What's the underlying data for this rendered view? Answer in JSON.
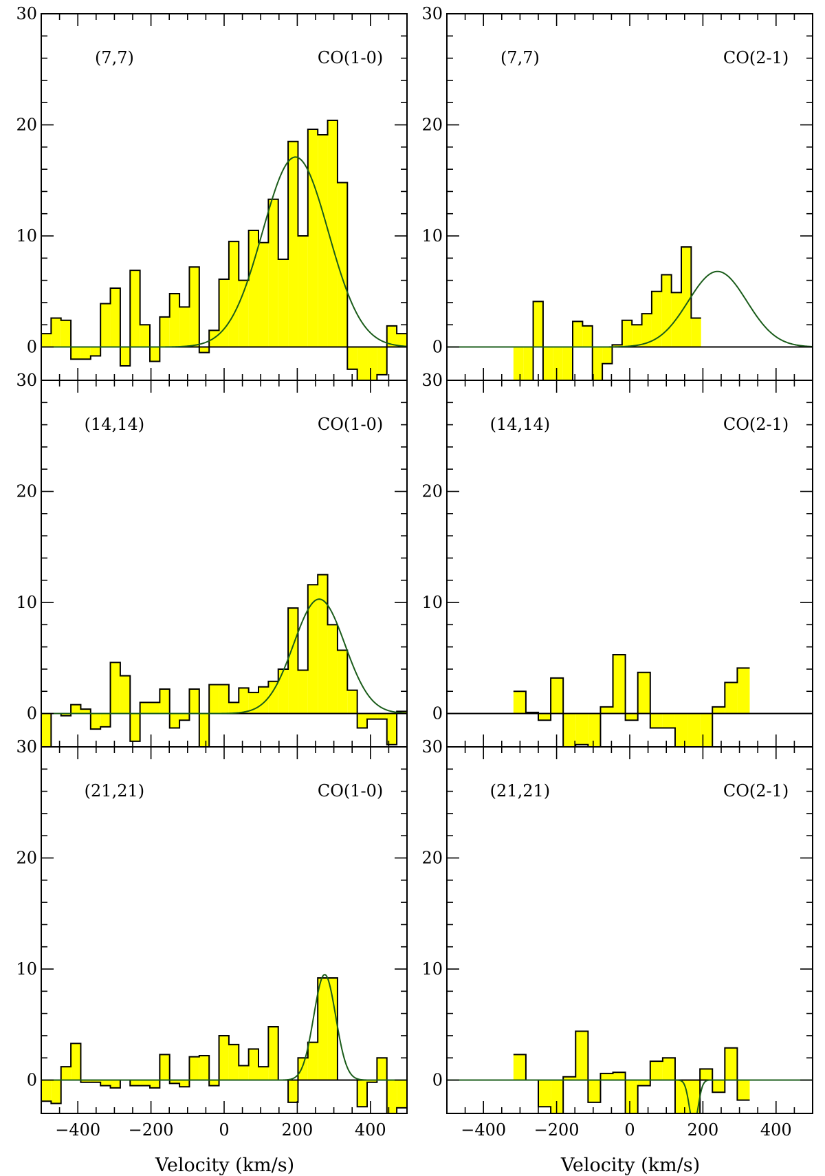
{
  "figure": {
    "x_axis_label": "Velocity (km/s)",
    "y_axis_label": "",
    "x_tick_labels": [
      "−400",
      "−200",
      "0",
      "200",
      "400"
    ],
    "y_tick_labels": [
      "0",
      "10",
      "20",
      "30"
    ],
    "colors": {
      "fill": "#ffff00",
      "fit": "#1a5c1a",
      "axis": "#000000"
    }
  },
  "chart_data": [
    {
      "type": "histogram-spectrum",
      "position": "(7,7)",
      "line": "CO(1-0)",
      "xlim": [
        -500,
        500
      ],
      "ylim": [
        -3,
        30
      ],
      "x_start": -500,
      "bin_width": 27,
      "values": [
        1.2,
        2.6,
        2.4,
        -1.1,
        -1.1,
        -0.8,
        3.9,
        5.3,
        -1.7,
        6.9,
        2.0,
        -1.3,
        2.7,
        4.8,
        3.6,
        7.2,
        -0.5,
        1.5,
        6.1,
        9.5,
        6.0,
        10.5,
        9.4,
        13.3,
        7.9,
        18.5,
        10.0,
        19.6,
        19.1,
        20.4,
        14.8,
        -2.0,
        -4.0,
        -4.0,
        -2.5,
        1.9,
        1.2
      ],
      "fit": {
        "amp": 17.1,
        "center": 195,
        "sigma": 90
      }
    },
    {
      "type": "histogram-spectrum",
      "position": "(7,7)",
      "line": "CO(2-1)",
      "xlim": [
        -500,
        500
      ],
      "ylim": [
        -3,
        30
      ],
      "x_start": -318,
      "bin_width": 27,
      "values": [
        -3,
        -3,
        4.1,
        -3,
        -3,
        -3,
        2.3,
        1.9,
        -3,
        -1.5,
        0.2,
        2.4,
        2.0,
        3.0,
        5.0,
        6.5,
        4.9,
        9.0,
        2.6
      ],
      "fit": {
        "amp": 6.8,
        "center": 240,
        "sigma": 80
      }
    },
    {
      "type": "histogram-spectrum",
      "position": "(14,14)",
      "line": "CO(1-0)",
      "xlim": [
        -500,
        500
      ],
      "ylim": [
        -3,
        30
      ],
      "x_start": -500,
      "bin_width": 27,
      "values": [
        -3,
        0.0,
        -0.2,
        0.8,
        0.4,
        -1.4,
        -1.2,
        4.6,
        3.4,
        -2.5,
        1.0,
        1.0,
        2.2,
        -1.3,
        -0.6,
        2.2,
        -3,
        2.6,
        2.6,
        1.0,
        2.3,
        1.9,
        2.4,
        2.9,
        4.0,
        9.5,
        3.9,
        11.6,
        12.5,
        8.0,
        5.7,
        2.1,
        -1.3,
        -0.5,
        -0.5,
        -2.8,
        0.2
      ],
      "fit": {
        "amp": 10.3,
        "center": 260,
        "sigma": 70
      }
    },
    {
      "type": "histogram-spectrum",
      "position": "(14,14)",
      "line": "CO(2-1)",
      "xlim": [
        -500,
        500
      ],
      "ylim": [
        -3,
        30
      ],
      "x_start": -318,
      "bin_width": 34,
      "values": [
        2.0,
        0.1,
        -0.6,
        3.2,
        -3,
        -2.8,
        -3,
        0.6,
        5.3,
        -0.6,
        3.7,
        -1.3,
        -1.3,
        -3,
        -3,
        -3,
        0.6,
        2.8,
        4.1
      ],
      "fit": null
    },
    {
      "type": "histogram-spectrum",
      "position": "(21,21)",
      "line": "CO(1-0)",
      "xlim": [
        -500,
        500
      ],
      "ylim": [
        -3,
        30
      ],
      "x_start": -500,
      "bin_width": 27,
      "values": [
        -1.9,
        -2.1,
        1.2,
        3.3,
        -0.2,
        -0.2,
        -0.5,
        -0.7,
        0.0,
        -0.5,
        -0.5,
        -0.7,
        2.3,
        -0.3,
        -0.6,
        2.1,
        2.2,
        -0.5,
        4.0,
        3.2,
        1.3,
        2.8,
        1.2,
        4.8,
        0.0,
        -2.0,
        2.0,
        3.4,
        9.2,
        9.2,
        0.0,
        0.0,
        -2.4,
        -0.2,
        2.0,
        -3,
        -2.5
      ],
      "fit": {
        "amp": 9.5,
        "center": 275,
        "sigma": 30
      }
    },
    {
      "type": "histogram-spectrum",
      "position": "(21,21)",
      "line": "CO(2-1)",
      "xlim": [
        -500,
        500
      ],
      "ylim": [
        -3,
        30
      ],
      "x_start": -318,
      "bin_width": 34,
      "values": [
        2.3,
        0.0,
        -2.4,
        -3,
        0.3,
        4.4,
        -2.0,
        0.6,
        0.7,
        -3,
        -0.5,
        1.7,
        2.0,
        -3,
        -3,
        1.0,
        -1.1,
        2.9,
        -1.8
      ],
      "fit": {
        "amp": -4.0,
        "center": 175,
        "sigma": 12
      }
    }
  ]
}
